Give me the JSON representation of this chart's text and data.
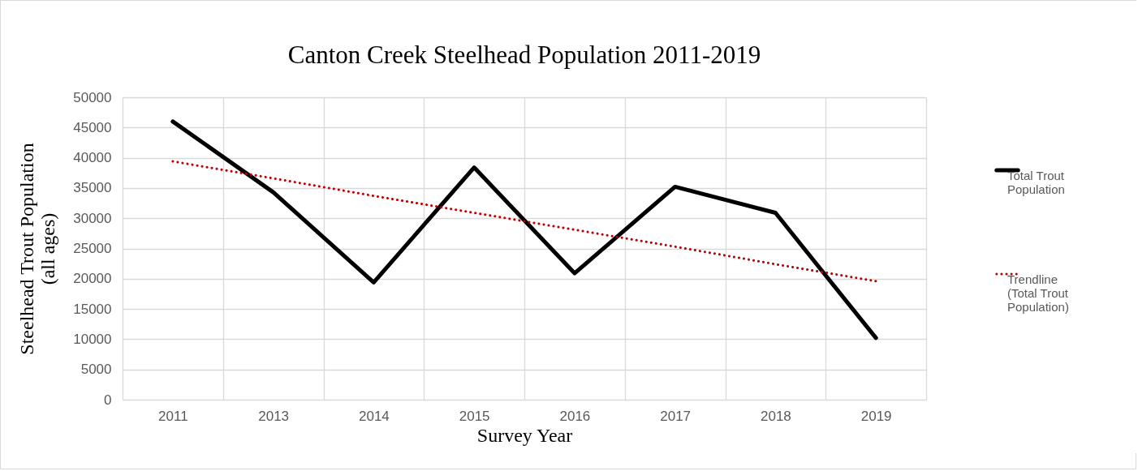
{
  "chart_data": {
    "type": "line",
    "title": "Canton Creek Steelhead Population 2011-2019",
    "xlabel": "Survey Year",
    "ylabel": "Steelhead Trout Population (all ages)",
    "categories": [
      "2011",
      "2013",
      "2014",
      "2015",
      "2016",
      "2017",
      "2018",
      "2019"
    ],
    "series": [
      {
        "name": "Total Trout Population",
        "color": "#000000",
        "line_style": "solid",
        "values": [
          46000,
          34300,
          19400,
          38400,
          20900,
          35200,
          30900,
          10200
        ]
      },
      {
        "name": "Trendline (Total Trout Population)",
        "type": "line",
        "color": "#c00000",
        "line_style": "dotted",
        "values": [
          39400,
          36600,
          33700,
          30900,
          28100,
          25300,
          22400,
          19600
        ]
      }
    ],
    "ylim": [
      0,
      50000
    ],
    "yticks": [
      0,
      5000,
      10000,
      15000,
      20000,
      25000,
      30000,
      35000,
      40000,
      45000,
      50000
    ],
    "grid": true,
    "legend": "right",
    "marker": "none"
  }
}
